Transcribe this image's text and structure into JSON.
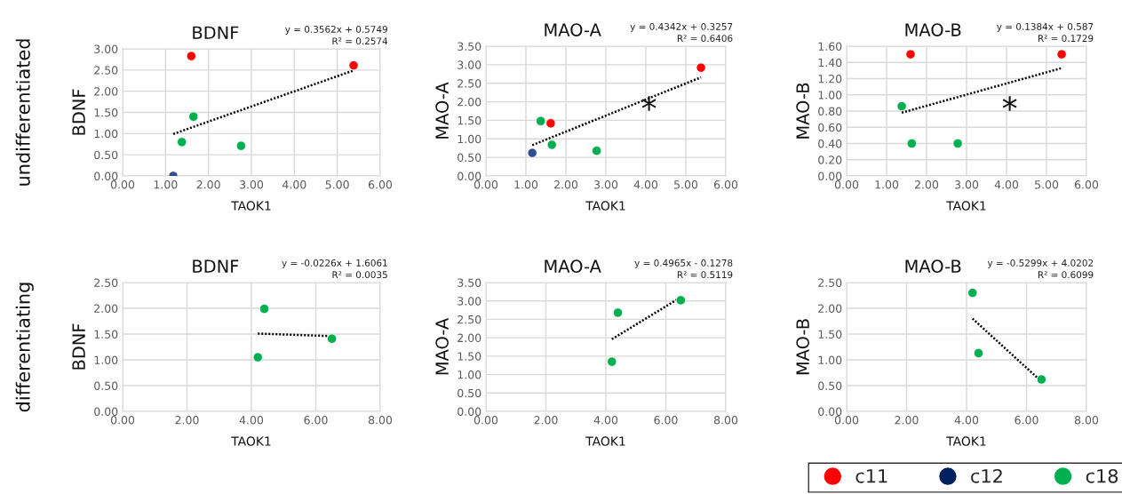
{
  "chart_data": [
    {
      "type": "scatter",
      "title": "BDNF",
      "xlabel": "TAOK1",
      "ylabel": "BDNF",
      "grid": true,
      "marker": "circle",
      "xlim": [
        0,
        6
      ],
      "xticks": [
        {
          "value": 0,
          "label": "0.00"
        },
        {
          "value": 1,
          "label": "1.00"
        },
        {
          "value": 2,
          "label": "2.00"
        },
        {
          "value": 3,
          "label": "3.00"
        },
        {
          "value": 4,
          "label": "4.00"
        },
        {
          "value": 5,
          "label": "5.00"
        },
        {
          "value": 6,
          "label": "6.00"
        }
      ],
      "ylim": [
        0,
        3
      ],
      "yticks": [
        {
          "value": 0,
          "label": "0.00"
        },
        {
          "value": 0.5,
          "label": "0.50"
        },
        {
          "value": 1,
          "label": "1.00"
        },
        {
          "value": 1.5,
          "label": "1.50"
        },
        {
          "value": 2,
          "label": "2.00"
        },
        {
          "value": 2.5,
          "label": "2.50"
        },
        {
          "value": 3,
          "label": "3.00"
        }
      ],
      "annotations": [
        "y = 0.3562x + 0.5749\nR² = 0.2574",
        "undifferentiated"
      ],
      "series": [
        {
          "color": "#ff0000",
          "x": [
            1.6,
            5.38
          ],
          "values": [
            2.83,
            2.61
          ]
        },
        {
          "color": "#2f4f8f",
          "x": [
            1.18
          ],
          "values": [
            0.0
          ]
        },
        {
          "color": "#00b050",
          "x": [
            1.38,
            1.65,
            2.76
          ],
          "values": [
            0.8,
            1.4,
            0.71
          ]
        },
        {
          "type": "line",
          "color": "#000000",
          "line_style": "dotted",
          "marker": "none",
          "x": [
            1.18,
            5.38
          ],
          "values": [
            0.99,
            2.49
          ]
        }
      ]
    },
    {
      "type": "scatter",
      "title": "MAO-A",
      "xlabel": "TAOK1",
      "ylabel": "MAO-A",
      "grid": true,
      "marker": "circle",
      "xlim": [
        0,
        6
      ],
      "xticks": [
        {
          "value": 0,
          "label": "0.00"
        },
        {
          "value": 1,
          "label": "1.00"
        },
        {
          "value": 2,
          "label": "2.00"
        },
        {
          "value": 3,
          "label": "3.00"
        },
        {
          "value": 4,
          "label": "4.00"
        },
        {
          "value": 5,
          "label": "5.00"
        },
        {
          "value": 6,
          "label": "6.00"
        }
      ],
      "ylim": [
        0,
        3.5
      ],
      "yticks": [
        {
          "value": 0,
          "label": "0.00"
        },
        {
          "value": 0.5,
          "label": "0.50"
        },
        {
          "value": 1,
          "label": "1.00"
        },
        {
          "value": 1.5,
          "label": "1.50"
        },
        {
          "value": 2,
          "label": "2.00"
        },
        {
          "value": 2.5,
          "label": "2.50"
        },
        {
          "value": 3,
          "label": "3.00"
        },
        {
          "value": 3.5,
          "label": "3.50"
        }
      ],
      "annotations": [
        "y = 0.4342x + 0.3257\nR² = 0.6406",
        "*"
      ],
      "series": [
        {
          "color": "#ff0000",
          "x": [
            1.62,
            5.38
          ],
          "values": [
            1.42,
            2.92
          ]
        },
        {
          "color": "#2f4f8f",
          "x": [
            1.16
          ],
          "values": [
            0.62
          ]
        },
        {
          "color": "#00b050",
          "x": [
            1.37,
            1.65,
            2.77
          ],
          "values": [
            1.48,
            0.84,
            0.68
          ]
        },
        {
          "type": "line",
          "color": "#000000",
          "line_style": "dotted",
          "marker": "none",
          "x": [
            1.16,
            5.38
          ],
          "values": [
            0.83,
            2.66
          ]
        }
      ]
    },
    {
      "type": "scatter",
      "title": "MAO-B",
      "xlabel": "TAOK1",
      "ylabel": "MAO-B",
      "grid": true,
      "marker": "circle",
      "xlim": [
        0,
        6
      ],
      "xticks": [
        {
          "value": 0,
          "label": "0.00"
        },
        {
          "value": 1,
          "label": "1.00"
        },
        {
          "value": 2,
          "label": "2.00"
        },
        {
          "value": 3,
          "label": "3.00"
        },
        {
          "value": 4,
          "label": "4.00"
        },
        {
          "value": 5,
          "label": "5.00"
        },
        {
          "value": 6,
          "label": "6.00"
        }
      ],
      "ylim": [
        0,
        1.6
      ],
      "yticks": [
        {
          "value": 0,
          "label": "0.00"
        },
        {
          "value": 0.2,
          "label": "0.20"
        },
        {
          "value": 0.4,
          "label": "0.40"
        },
        {
          "value": 0.6,
          "label": "0.60"
        },
        {
          "value": 0.8,
          "label": "0.80"
        },
        {
          "value": 1.0,
          "label": "1.00"
        },
        {
          "value": 1.2,
          "label": "1.20"
        },
        {
          "value": 1.4,
          "label": "1.40"
        },
        {
          "value": 1.6,
          "label": "1.60"
        }
      ],
      "annotations": [
        "y = 0.1384x + 0.587\nR² = 0.1729",
        "*"
      ],
      "series": [
        {
          "color": "#ff0000",
          "x": [
            1.6,
            5.38
          ],
          "values": [
            1.5,
            1.5
          ]
        },
        {
          "color": "#00b050",
          "x": [
            1.38,
            1.63,
            2.78
          ],
          "values": [
            0.86,
            0.4,
            0.4
          ]
        },
        {
          "type": "line",
          "color": "#000000",
          "line_style": "dotted",
          "marker": "none",
          "x": [
            1.38,
            5.38
          ],
          "values": [
            0.78,
            1.33
          ]
        }
      ]
    },
    {
      "type": "scatter",
      "title": "BDNF",
      "xlabel": "TAOK1",
      "ylabel": "BDNF",
      "grid": true,
      "marker": "circle",
      "xlim": [
        0,
        8
      ],
      "xticks": [
        {
          "value": 0,
          "label": "0.00"
        },
        {
          "value": 2,
          "label": "2.00"
        },
        {
          "value": 4,
          "label": "4.00"
        },
        {
          "value": 6,
          "label": "6.00"
        },
        {
          "value": 8,
          "label": "8.00"
        }
      ],
      "ylim": [
        0,
        2.5
      ],
      "yticks": [
        {
          "value": 0,
          "label": "0.00"
        },
        {
          "value": 0.5,
          "label": "0.50"
        },
        {
          "value": 1,
          "label": "1.00"
        },
        {
          "value": 1.5,
          "label": "1.50"
        },
        {
          "value": 2,
          "label": "2.00"
        },
        {
          "value": 2.5,
          "label": "2.50"
        }
      ],
      "annotations": [
        "y = -0.0226x + 1.6061\nR² = 0.0035",
        "differentiating"
      ],
      "series": [
        {
          "color": "#00b050",
          "x": [
            4.2,
            4.4,
            6.5
          ],
          "values": [
            1.05,
            1.99,
            1.41
          ]
        },
        {
          "type": "line",
          "color": "#000000",
          "line_style": "dotted",
          "marker": "none",
          "x": [
            4.2,
            6.5
          ],
          "values": [
            1.51,
            1.46
          ]
        }
      ]
    },
    {
      "type": "scatter",
      "title": "MAO-A",
      "xlabel": "TAOK1",
      "ylabel": "MAO-A",
      "grid": true,
      "marker": "circle",
      "xlim": [
        0,
        8
      ],
      "xticks": [
        {
          "value": 0,
          "label": "0.00"
        },
        {
          "value": 2,
          "label": "2.00"
        },
        {
          "value": 4,
          "label": "4.00"
        },
        {
          "value": 6,
          "label": "6.00"
        },
        {
          "value": 8,
          "label": "8.00"
        }
      ],
      "ylim": [
        0,
        3.5
      ],
      "yticks": [
        {
          "value": 0,
          "label": "0.00"
        },
        {
          "value": 0.5,
          "label": "0.50"
        },
        {
          "value": 1,
          "label": "1.00"
        },
        {
          "value": 1.5,
          "label": "1.50"
        },
        {
          "value": 2,
          "label": "2.00"
        },
        {
          "value": 2.5,
          "label": "2.50"
        },
        {
          "value": 3,
          "label": "3.00"
        },
        {
          "value": 3.5,
          "label": "3.50"
        }
      ],
      "annotations": [
        "y = 0.4965x - 0.1278\nR² = 0.5119"
      ],
      "series": [
        {
          "color": "#00b050",
          "x": [
            4.2,
            4.4,
            6.5
          ],
          "values": [
            1.35,
            2.68,
            3.02
          ]
        },
        {
          "type": "line",
          "color": "#000000",
          "line_style": "dotted",
          "marker": "none",
          "x": [
            4.2,
            6.5
          ],
          "values": [
            1.96,
            3.1
          ]
        }
      ]
    },
    {
      "type": "scatter",
      "title": "MAO-B",
      "xlabel": "TAOK1",
      "ylabel": "MAO-B",
      "grid": true,
      "marker": "circle",
      "legend": "bottom",
      "xlim": [
        0,
        8
      ],
      "xticks": [
        {
          "value": 0,
          "label": "0.00"
        },
        {
          "value": 2,
          "label": "2.00"
        },
        {
          "value": 4,
          "label": "4.00"
        },
        {
          "value": 6,
          "label": "6.00"
        },
        {
          "value": 8,
          "label": "8.00"
        }
      ],
      "ylim": [
        0,
        2.5
      ],
      "yticks": [
        {
          "value": 0,
          "label": "0.00"
        },
        {
          "value": 0.5,
          "label": "0.50"
        },
        {
          "value": 1,
          "label": "1.00"
        },
        {
          "value": 1.5,
          "label": "1.50"
        },
        {
          "value": 2,
          "label": "2.00"
        },
        {
          "value": 2.5,
          "label": "2.50"
        }
      ],
      "annotations": [
        "y = -0.5299x + 4.0202\nR² = 0.6099"
      ],
      "series": [
        {
          "name": "c11",
          "color": "#ff0000"
        },
        {
          "name": "c12",
          "color": "#002060"
        },
        {
          "name": "c18",
          "color": "#00b050",
          "x": [
            4.2,
            4.4,
            6.5
          ],
          "values": [
            2.3,
            1.13,
            0.62
          ]
        },
        {
          "type": "line",
          "color": "#000000",
          "line_style": "dotted",
          "marker": "none",
          "x": [
            4.2,
            6.5
          ],
          "values": [
            1.8,
            0.58
          ]
        }
      ]
    }
  ]
}
